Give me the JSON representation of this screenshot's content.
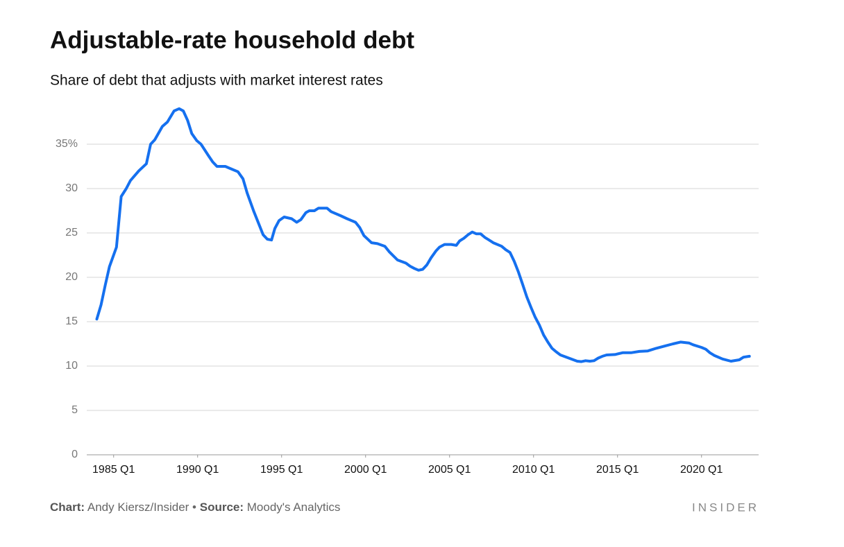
{
  "chart_data": {
    "type": "line",
    "title": "Adjustable-rate household debt",
    "subtitle": "Share of debt that adjusts with market interest rates",
    "color": "#1570ef",
    "x": [
      1984.0,
      1984.25,
      1984.5,
      1984.75,
      1985.17,
      1985.45,
      1985.75,
      1986.0,
      1986.5,
      1986.95,
      1987.2,
      1987.45,
      1987.9,
      1988.2,
      1988.6,
      1988.9,
      1989.15,
      1989.4,
      1989.65,
      1989.95,
      1990.2,
      1990.65,
      1990.9,
      1991.15,
      1991.65,
      1991.9,
      1992.4,
      1992.7,
      1992.95,
      1993.35,
      1993.9,
      1994.15,
      1994.4,
      1994.6,
      1994.85,
      1995.15,
      1995.6,
      1995.9,
      1996.15,
      1996.45,
      1996.65,
      1996.95,
      1997.2,
      1997.7,
      1997.95,
      1998.5,
      1998.9,
      1999.4,
      1999.65,
      1999.9,
      2000.35,
      2000.7,
      2001.15,
      2001.4,
      2001.9,
      2002.4,
      2002.65,
      2002.9,
      2003.15,
      2003.4,
      2003.65,
      2003.9,
      2004.2,
      2004.4,
      2004.7,
      2005.1,
      2005.4,
      2005.6,
      2005.85,
      2006.1,
      2006.35,
      2006.6,
      2006.85,
      2007.1,
      2007.35,
      2007.6,
      2008.1,
      2008.35,
      2008.6,
      2008.85,
      2009.1,
      2009.35,
      2009.6,
      2009.85,
      2010.1,
      2010.35,
      2010.6,
      2010.85,
      2011.1,
      2011.35,
      2011.6,
      2012.1,
      2012.6,
      2012.85,
      2013.1,
      2013.35,
      2013.6,
      2013.85,
      2014.1,
      2014.35,
      2014.85,
      2015.3,
      2015.8,
      2016.3,
      2016.8,
      2017.3,
      2017.8,
      2018.3,
      2018.75,
      2019.25,
      2019.5,
      2020.0,
      2020.25,
      2020.5,
      2020.75,
      2021.25,
      2021.75,
      2022.25,
      2022.5,
      2022.85
    ],
    "values": [
      15.3,
      16.9,
      19.1,
      21.2,
      23.4,
      29.1,
      30.0,
      30.9,
      32.0,
      32.8,
      35.0,
      35.5,
      37.0,
      37.5,
      38.75,
      39.0,
      38.75,
      37.7,
      36.2,
      35.4,
      35.0,
      33.7,
      33.0,
      32.5,
      32.5,
      32.3,
      31.9,
      31.1,
      29.5,
      27.4,
      24.8,
      24.3,
      24.2,
      25.5,
      26.4,
      26.8,
      26.6,
      26.2,
      26.5,
      27.3,
      27.5,
      27.5,
      27.8,
      27.8,
      27.4,
      26.95,
      26.6,
      26.2,
      25.6,
      24.7,
      23.9,
      23.8,
      23.5,
      22.9,
      21.95,
      21.6,
      21.25,
      21.0,
      20.8,
      20.9,
      21.4,
      22.2,
      23.0,
      23.4,
      23.7,
      23.7,
      23.6,
      24.1,
      24.4,
      24.8,
      25.1,
      24.9,
      24.9,
      24.5,
      24.2,
      23.9,
      23.5,
      23.1,
      22.8,
      21.8,
      20.6,
      19.2,
      17.8,
      16.6,
      15.5,
      14.6,
      13.5,
      12.7,
      12.0,
      11.6,
      11.25,
      10.9,
      10.55,
      10.5,
      10.6,
      10.55,
      10.6,
      10.9,
      11.1,
      11.25,
      11.3,
      11.5,
      11.5,
      11.65,
      11.7,
      12.0,
      12.25,
      12.5,
      12.7,
      12.6,
      12.4,
      12.1,
      11.9,
      11.5,
      11.2,
      10.8,
      10.55,
      10.7,
      11.0,
      11.1
    ],
    "xlim": [
      1983.4,
      2023.4
    ],
    "xticks": [
      {
        "value": 1985,
        "label": "1985 Q1"
      },
      {
        "value": 1990,
        "label": "1990 Q1"
      },
      {
        "value": 1995,
        "label": "1995 Q1"
      },
      {
        "value": 2000,
        "label": "2000 Q1"
      },
      {
        "value": 2005,
        "label": "2005 Q1"
      },
      {
        "value": 2010,
        "label": "2010 Q1"
      },
      {
        "value": 2015,
        "label": "2015 Q1"
      },
      {
        "value": 2020,
        "label": "2020 Q1"
      }
    ],
    "ylim": [
      0,
      40
    ],
    "yticks": [
      0,
      5,
      10,
      15,
      20,
      25,
      30,
      {
        "value": 35,
        "label": "35%"
      }
    ],
    "grid": true
  },
  "footer": {
    "chart_label": "Chart:",
    "chart_text": "Andy Kiersz/Insider",
    "separator": "•",
    "source_label": "Source:",
    "source_text": "Moody's Analytics"
  },
  "brand": "INSIDER"
}
